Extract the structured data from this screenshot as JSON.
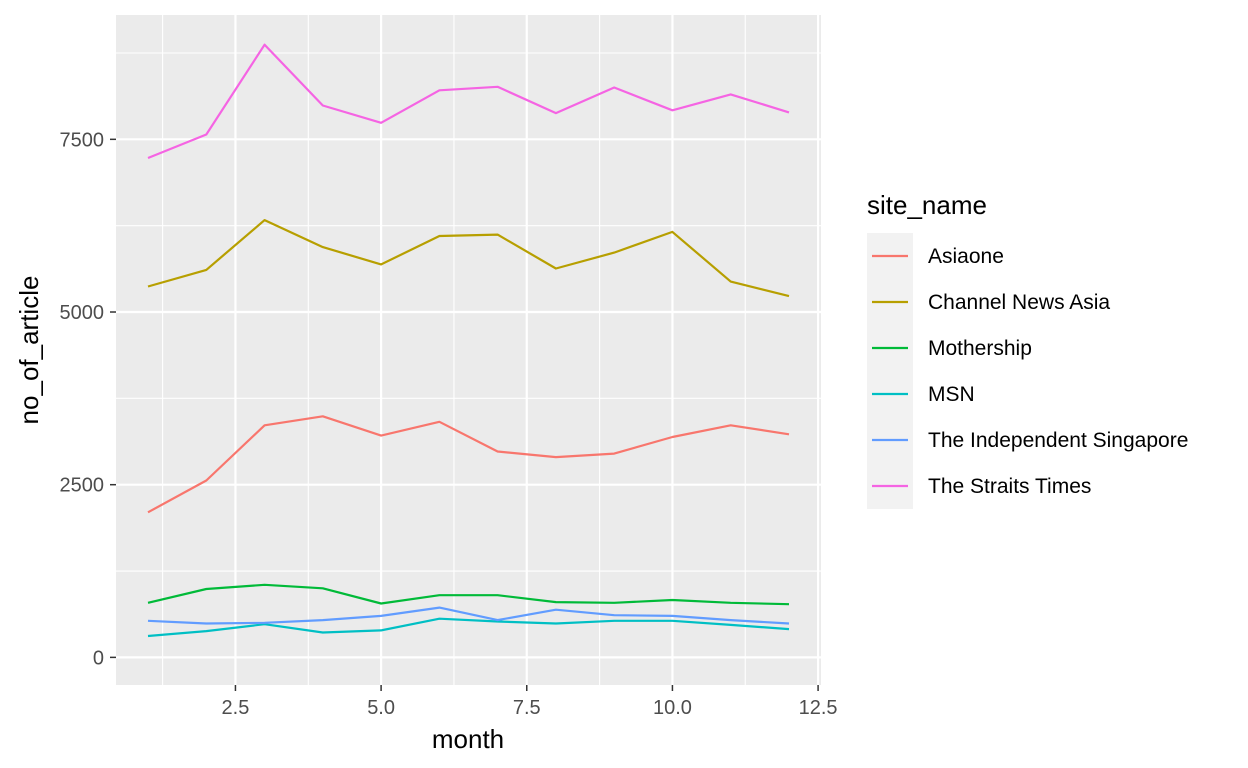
{
  "chart_data": {
    "type": "line",
    "xlabel": "month",
    "ylabel": "no_of_article",
    "xlim": [
      0.45,
      12.55
    ],
    "ylim": [
      -400,
      9300
    ],
    "x_ticks": [
      2.5,
      5.0,
      7.5,
      10.0,
      12.5
    ],
    "x_tick_labels": [
      "2.5",
      "5.0",
      "7.5",
      "10.0",
      "12.5"
    ],
    "y_ticks": [
      0,
      2500,
      5000,
      7500
    ],
    "y_tick_labels": [
      "0",
      "2500",
      "5000",
      "7500"
    ],
    "grid": true,
    "legend": {
      "title": "site_name",
      "position": "right"
    },
    "x": [
      1,
      2,
      3,
      4,
      5,
      6,
      7,
      8,
      9,
      10,
      11,
      12
    ],
    "series": [
      {
        "name": "Asiaone",
        "color": "#F8766D",
        "values": [
          2100,
          2560,
          3360,
          3490,
          3210,
          3410,
          2980,
          2900,
          2950,
          3190,
          3360,
          3230
        ]
      },
      {
        "name": "Channel News Asia",
        "color": "#B79F00",
        "values": [
          5370,
          5610,
          6330,
          5940,
          5690,
          6100,
          6120,
          5630,
          5860,
          6160,
          5440,
          5230
        ]
      },
      {
        "name": "Mothership",
        "color": "#00BA38",
        "values": [
          790,
          990,
          1050,
          1000,
          780,
          900,
          900,
          800,
          790,
          830,
          790,
          770
        ]
      },
      {
        "name": "MSN",
        "color": "#00BFC4",
        "values": [
          310,
          380,
          480,
          360,
          390,
          560,
          520,
          490,
          530,
          530,
          470,
          410
        ]
      },
      {
        "name": "The Independent Singapore",
        "color": "#619CFF",
        "values": [
          530,
          490,
          500,
          540,
          600,
          720,
          540,
          690,
          610,
          600,
          540,
          490
        ]
      },
      {
        "name": "The Straits Times",
        "color": "#F564E3",
        "values": [
          7230,
          7570,
          8870,
          7990,
          7740,
          8210,
          8260,
          7880,
          8250,
          7920,
          8150,
          7890
        ]
      }
    ]
  }
}
